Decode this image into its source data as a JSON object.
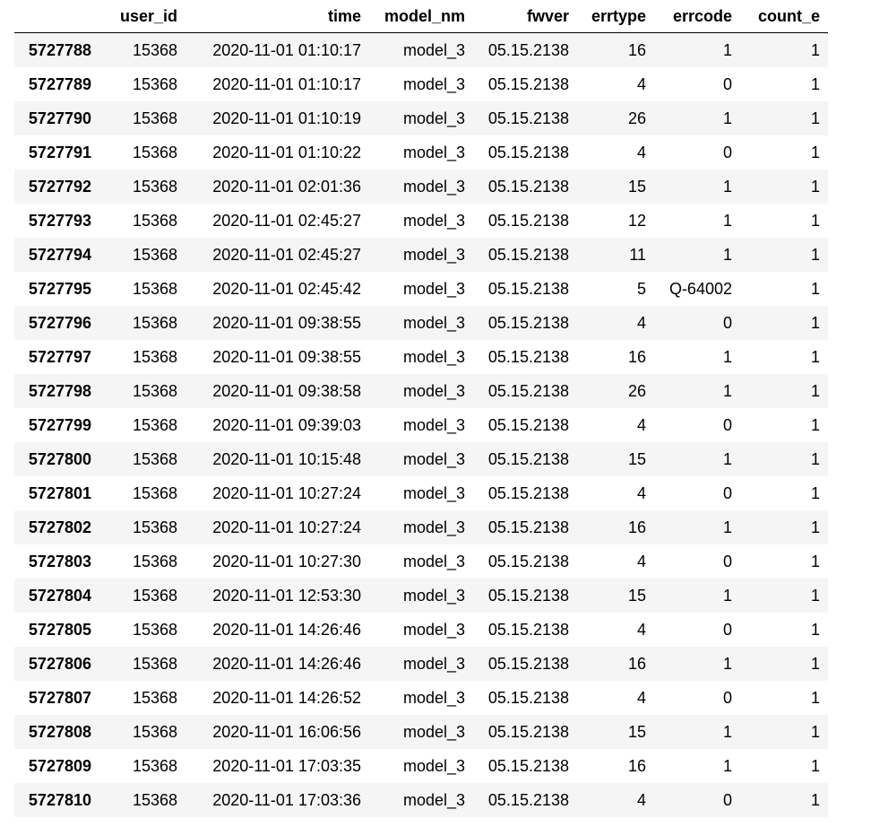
{
  "table": {
    "columns": [
      "user_id",
      "time",
      "model_nm",
      "fwver",
      "errtype",
      "errcode",
      "count_e"
    ],
    "rows": [
      {
        "index": "5727788",
        "cells": [
          "15368",
          "2020-11-01 01:10:17",
          "model_3",
          "05.15.2138",
          "16",
          "1",
          "1"
        ]
      },
      {
        "index": "5727789",
        "cells": [
          "15368",
          "2020-11-01 01:10:17",
          "model_3",
          "05.15.2138",
          "4",
          "0",
          "1"
        ]
      },
      {
        "index": "5727790",
        "cells": [
          "15368",
          "2020-11-01 01:10:19",
          "model_3",
          "05.15.2138",
          "26",
          "1",
          "1"
        ]
      },
      {
        "index": "5727791",
        "cells": [
          "15368",
          "2020-11-01 01:10:22",
          "model_3",
          "05.15.2138",
          "4",
          "0",
          "1"
        ]
      },
      {
        "index": "5727792",
        "cells": [
          "15368",
          "2020-11-01 02:01:36",
          "model_3",
          "05.15.2138",
          "15",
          "1",
          "1"
        ]
      },
      {
        "index": "5727793",
        "cells": [
          "15368",
          "2020-11-01 02:45:27",
          "model_3",
          "05.15.2138",
          "12",
          "1",
          "1"
        ]
      },
      {
        "index": "5727794",
        "cells": [
          "15368",
          "2020-11-01 02:45:27",
          "model_3",
          "05.15.2138",
          "11",
          "1",
          "1"
        ]
      },
      {
        "index": "5727795",
        "cells": [
          "15368",
          "2020-11-01 02:45:42",
          "model_3",
          "05.15.2138",
          "5",
          "Q-64002",
          "1"
        ]
      },
      {
        "index": "5727796",
        "cells": [
          "15368",
          "2020-11-01 09:38:55",
          "model_3",
          "05.15.2138",
          "4",
          "0",
          "1"
        ]
      },
      {
        "index": "5727797",
        "cells": [
          "15368",
          "2020-11-01 09:38:55",
          "model_3",
          "05.15.2138",
          "16",
          "1",
          "1"
        ]
      },
      {
        "index": "5727798",
        "cells": [
          "15368",
          "2020-11-01 09:38:58",
          "model_3",
          "05.15.2138",
          "26",
          "1",
          "1"
        ]
      },
      {
        "index": "5727799",
        "cells": [
          "15368",
          "2020-11-01 09:39:03",
          "model_3",
          "05.15.2138",
          "4",
          "0",
          "1"
        ]
      },
      {
        "index": "5727800",
        "cells": [
          "15368",
          "2020-11-01 10:15:48",
          "model_3",
          "05.15.2138",
          "15",
          "1",
          "1"
        ]
      },
      {
        "index": "5727801",
        "cells": [
          "15368",
          "2020-11-01 10:27:24",
          "model_3",
          "05.15.2138",
          "4",
          "0",
          "1"
        ]
      },
      {
        "index": "5727802",
        "cells": [
          "15368",
          "2020-11-01 10:27:24",
          "model_3",
          "05.15.2138",
          "16",
          "1",
          "1"
        ]
      },
      {
        "index": "5727803",
        "cells": [
          "15368",
          "2020-11-01 10:27:30",
          "model_3",
          "05.15.2138",
          "4",
          "0",
          "1"
        ]
      },
      {
        "index": "5727804",
        "cells": [
          "15368",
          "2020-11-01 12:53:30",
          "model_3",
          "05.15.2138",
          "15",
          "1",
          "1"
        ]
      },
      {
        "index": "5727805",
        "cells": [
          "15368",
          "2020-11-01 14:26:46",
          "model_3",
          "05.15.2138",
          "4",
          "0",
          "1"
        ]
      },
      {
        "index": "5727806",
        "cells": [
          "15368",
          "2020-11-01 14:26:46",
          "model_3",
          "05.15.2138",
          "16",
          "1",
          "1"
        ]
      },
      {
        "index": "5727807",
        "cells": [
          "15368",
          "2020-11-01 14:26:52",
          "model_3",
          "05.15.2138",
          "4",
          "0",
          "1"
        ]
      },
      {
        "index": "5727808",
        "cells": [
          "15368",
          "2020-11-01 16:06:56",
          "model_3",
          "05.15.2138",
          "15",
          "1",
          "1"
        ]
      },
      {
        "index": "5727809",
        "cells": [
          "15368",
          "2020-11-01 17:03:35",
          "model_3",
          "05.15.2138",
          "16",
          "1",
          "1"
        ]
      },
      {
        "index": "5727810",
        "cells": [
          "15368",
          "2020-11-01 17:03:36",
          "model_3",
          "05.15.2138",
          "4",
          "0",
          "1"
        ]
      }
    ]
  },
  "colors": {
    "stripe": "#f5f5f5",
    "background": "#ffffff",
    "text": "#000000"
  }
}
